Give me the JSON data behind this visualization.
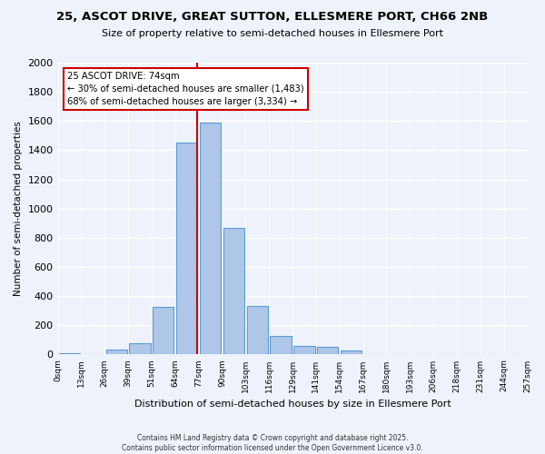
{
  "title1": "25, ASCOT DRIVE, GREAT SUTTON, ELLESMERE PORT, CH66 2NB",
  "title2": "Size of property relative to semi-detached houses in Ellesmere Port",
  "xlabel": "Distribution of semi-detached houses by size in Ellesmere Port",
  "ylabel": "Number of semi-detached properties",
  "tick_labels": [
    "0sqm",
    "13sqm",
    "26sqm",
    "39sqm",
    "51sqm",
    "64sqm",
    "77sqm",
    "90sqm",
    "103sqm",
    "116sqm",
    "129sqm",
    "141sqm",
    "154sqm",
    "167sqm",
    "180sqm",
    "193sqm",
    "206sqm",
    "218sqm",
    "231sqm",
    "244sqm",
    "257sqm"
  ],
  "bin_values": [
    10,
    0,
    35,
    75,
    325,
    1450,
    1590,
    865,
    335,
    125,
    60,
    50,
    25,
    0,
    0,
    0,
    0,
    0,
    0,
    0
  ],
  "bar_color": "#aec6e8",
  "bar_edge_color": "#5b9bd5",
  "property_bin_index": 5,
  "annotation_title": "25 ASCOT DRIVE: 74sqm",
  "annotation_line1": "← 30% of semi-detached houses are smaller (1,483)",
  "annotation_line2": "68% of semi-detached houses are larger (3,334) →",
  "vline_color": "#cc0000",
  "annotation_box_color": "#cc0000",
  "background_color": "#eef2fb",
  "grid_color": "#ffffff",
  "ylim": [
    0,
    2000
  ],
  "yticks": [
    0,
    200,
    400,
    600,
    800,
    1000,
    1200,
    1400,
    1600,
    1800,
    2000
  ],
  "footer": "Contains HM Land Registry data © Crown copyright and database right 2025.\nContains public sector information licensed under the Open Government Licence v3.0."
}
